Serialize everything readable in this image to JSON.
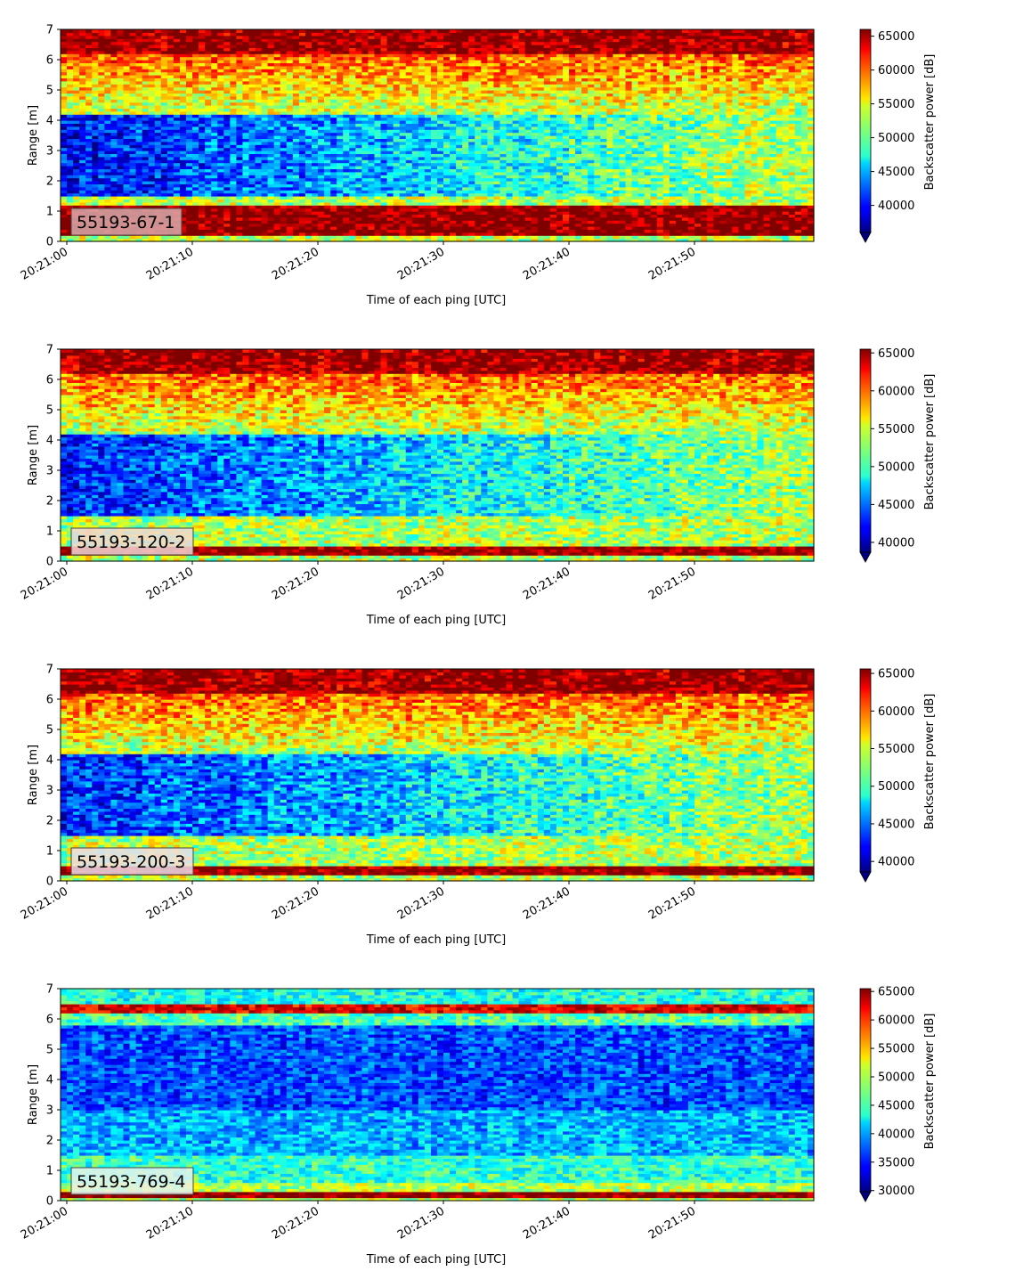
{
  "chart_data": [
    {
      "type": "heatmap",
      "label": "55193-67-1",
      "xlabel": "Time of each ping [UTC]",
      "ylabel": "Range [m]",
      "x_ticks": [
        "20:21:00",
        "20:21:10",
        "20:21:20",
        "20:21:30",
        "20:21:40",
        "20:21:50"
      ],
      "y_ticks": [
        0,
        1,
        2,
        3,
        4,
        5,
        6,
        7
      ],
      "xlim_seconds": [
        0,
        59.5
      ],
      "ylim": [
        0,
        7
      ],
      "colorbar": {
        "label": "Backscatter power [dB]",
        "ticks": [
          40000,
          45000,
          50000,
          55000,
          60000,
          65000
        ],
        "range": [
          36000,
          66000
        ],
        "extend": "min"
      },
      "label_box_color": "#d8aaac",
      "profile_seed": 1
    },
    {
      "type": "heatmap",
      "label": "55193-120-2",
      "xlabel": "Time of each ping [UTC]",
      "ylabel": "Range [m]",
      "x_ticks": [
        "20:21:00",
        "20:21:10",
        "20:21:20",
        "20:21:30",
        "20:21:40",
        "20:21:50"
      ],
      "y_ticks": [
        0,
        1,
        2,
        3,
        4,
        5,
        6,
        7
      ],
      "xlim_seconds": [
        0,
        59.5
      ],
      "ylim": [
        0,
        7
      ],
      "colorbar": {
        "label": "Backscatter power [dB]",
        "ticks": [
          40000,
          45000,
          50000,
          55000,
          60000,
          65000
        ],
        "range": [
          38700,
          65500
        ],
        "extend": "min"
      },
      "label_box_color": "#f0d7d6",
      "profile_seed": 2
    },
    {
      "type": "heatmap",
      "label": "55193-200-3",
      "xlabel": "Time of each ping [UTC]",
      "ylabel": "Range [m]",
      "x_ticks": [
        "20:21:00",
        "20:21:10",
        "20:21:20",
        "20:21:30",
        "20:21:40",
        "20:21:50"
      ],
      "y_ticks": [
        0,
        1,
        2,
        3,
        4,
        5,
        6,
        7
      ],
      "xlim_seconds": [
        0,
        59.5
      ],
      "ylim": [
        0,
        7
      ],
      "colorbar": {
        "label": "Backscatter power [dB]",
        "ticks": [
          40000,
          45000,
          50000,
          55000,
          60000,
          65000
        ],
        "range": [
          38600,
          65600
        ],
        "extend": "min"
      },
      "label_box_color": "#efdde9",
      "profile_seed": 3
    },
    {
      "type": "heatmap",
      "label": "55193-769-4",
      "xlabel": "Time of each ping [UTC]",
      "ylabel": "Range [m]",
      "x_ticks": [
        "20:21:00",
        "20:21:10",
        "20:21:20",
        "20:21:30",
        "20:21:40",
        "20:21:50"
      ],
      "y_ticks": [
        0,
        1,
        2,
        3,
        4,
        5,
        6,
        7
      ],
      "xlim_seconds": [
        0,
        59.5
      ],
      "ylim": [
        0,
        7
      ],
      "colorbar": {
        "label": "Backscatter power [dB]",
        "ticks": [
          30000,
          35000,
          40000,
          45000,
          50000,
          55000,
          60000,
          65000
        ],
        "range": [
          29800,
          65500
        ],
        "extend": "min"
      },
      "label_box_color": "#e6f2ee",
      "profile_seed": 4
    }
  ]
}
